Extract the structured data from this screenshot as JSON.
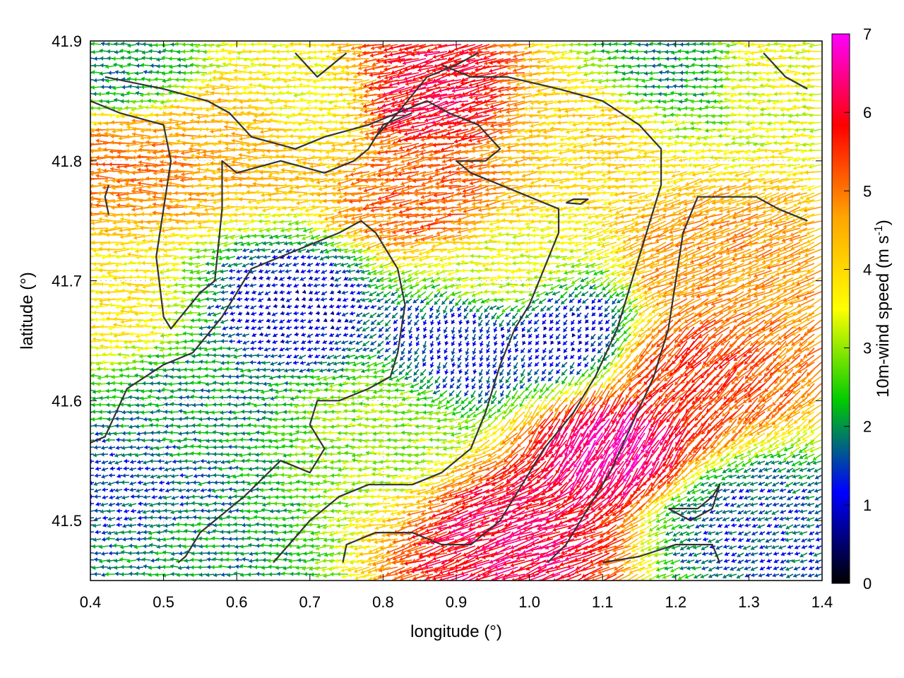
{
  "chart_data": {
    "type": "vector-field",
    "xlabel": "longitude (°)",
    "ylabel": "latitude (°)",
    "colorbar_label_main": "10m-wind speed (m s",
    "colorbar_label_sup": "-1",
    "colorbar_label_end": ")",
    "xlim": [
      0.4,
      1.4
    ],
    "ylim": [
      41.45,
      41.9
    ],
    "xticks": [
      "0.4",
      "0.5",
      "0.6",
      "0.7",
      "0.8",
      "0.9",
      "1.0",
      "1.1",
      "1.2",
      "1.3",
      "1.4"
    ],
    "xtick_values": [
      0.4,
      0.5,
      0.6,
      0.7,
      0.8,
      0.9,
      1.0,
      1.1,
      1.2,
      1.3,
      1.4
    ],
    "yticks": [
      "41.5",
      "41.6",
      "41.7",
      "41.8",
      "41.9"
    ],
    "ytick_values": [
      41.5,
      41.6,
      41.7,
      41.8,
      41.9
    ],
    "colorbar": {
      "range": [
        0,
        7
      ],
      "ticks": [
        "0",
        "1",
        "2",
        "3",
        "4",
        "5",
        "6",
        "7"
      ],
      "tick_values": [
        0,
        1,
        2,
        3,
        4,
        5,
        6,
        7
      ],
      "palette": [
        "#000000",
        "#0000ff",
        "#00cc00",
        "#ffff00",
        "#ffa500",
        "#ff0000",
        "#ff00ff"
      ]
    },
    "speed_regions": [
      {
        "lon": 0.47,
        "lat": 41.8,
        "speed": 5.0,
        "dir_deg": 180
      },
      {
        "lon": 0.62,
        "lat": 41.82,
        "speed": 4.5,
        "dir_deg": 180
      },
      {
        "lon": 0.88,
        "lat": 41.86,
        "speed": 6.0,
        "dir_deg": 195
      },
      {
        "lon": 0.87,
        "lat": 41.77,
        "speed": 5.2,
        "dir_deg": 190
      },
      {
        "lon": 1.1,
        "lat": 41.83,
        "speed": 4.0,
        "dir_deg": 185
      },
      {
        "lon": 1.25,
        "lat": 41.72,
        "speed": 4.8,
        "dir_deg": 200
      },
      {
        "lon": 1.22,
        "lat": 41.63,
        "speed": 5.5,
        "dir_deg": 225
      },
      {
        "lon": 1.12,
        "lat": 41.57,
        "speed": 6.5,
        "dir_deg": 240
      },
      {
        "lon": 1.0,
        "lat": 41.49,
        "speed": 6.2,
        "dir_deg": 200
      },
      {
        "lon": 0.7,
        "lat": 41.85,
        "speed": 3.5,
        "dir_deg": 180
      },
      {
        "lon": 0.8,
        "lat": 41.58,
        "speed": 3.0,
        "dir_deg": 180
      },
      {
        "lon": 0.68,
        "lat": 41.68,
        "speed": 1.0,
        "dir_deg": 200
      },
      {
        "lon": 0.92,
        "lat": 41.65,
        "speed": 1.2,
        "dir_deg": 250
      },
      {
        "lon": 0.45,
        "lat": 41.52,
        "speed": 1.5,
        "dir_deg": 190
      },
      {
        "lon": 0.55,
        "lat": 41.6,
        "speed": 2.0,
        "dir_deg": 180
      },
      {
        "lon": 1.05,
        "lat": 41.66,
        "speed": 1.0,
        "dir_deg": 230
      },
      {
        "lon": 1.3,
        "lat": 41.5,
        "speed": 1.5,
        "dir_deg": 200
      },
      {
        "lon": 1.35,
        "lat": 41.88,
        "speed": 3.5,
        "dir_deg": 180
      },
      {
        "lon": 1.2,
        "lat": 41.88,
        "speed": 2.0,
        "dir_deg": 180
      },
      {
        "lon": 0.45,
        "lat": 41.88,
        "speed": 2.0,
        "dir_deg": 180
      },
      {
        "lon": 0.43,
        "lat": 41.68,
        "speed": 3.8,
        "dir_deg": 180
      },
      {
        "lon": 0.98,
        "lat": 41.71,
        "speed": 3.5,
        "dir_deg": 180
      },
      {
        "lon": 0.52,
        "lat": 41.47,
        "speed": 2.0,
        "dir_deg": 180
      }
    ],
    "contours": [
      [
        [
          0.42,
          41.87
        ],
        [
          0.5,
          41.86
        ],
        [
          0.56,
          41.85
        ],
        [
          0.59,
          41.84
        ],
        [
          0.62,
          41.82
        ],
        [
          0.68,
          41.81
        ],
        [
          0.72,
          41.82
        ],
        [
          0.78,
          41.83
        ],
        [
          0.82,
          41.84
        ],
        [
          0.86,
          41.87
        ],
        [
          0.9,
          41.88
        ],
        [
          0.93,
          41.89
        ]
      ],
      [
        [
          0.4,
          41.85
        ],
        [
          0.44,
          41.84
        ],
        [
          0.5,
          41.83
        ],
        [
          0.51,
          41.8
        ],
        [
          0.5,
          41.76
        ],
        [
          0.49,
          41.72
        ],
        [
          0.5,
          41.67
        ],
        [
          0.51,
          41.66
        ],
        [
          0.55,
          41.69
        ],
        [
          0.57,
          41.7
        ],
        [
          0.58,
          41.76
        ],
        [
          0.58,
          41.8
        ],
        [
          0.6,
          41.79
        ],
        [
          0.66,
          41.8
        ],
        [
          0.72,
          41.79
        ],
        [
          0.76,
          41.8
        ],
        [
          0.78,
          41.81
        ],
        [
          0.8,
          41.83
        ],
        [
          0.84,
          41.84
        ]
      ],
      [
        [
          0.4,
          41.565
        ],
        [
          0.42,
          41.57
        ],
        [
          0.45,
          41.61
        ],
        [
          0.5,
          41.63
        ],
        [
          0.54,
          41.64
        ],
        [
          0.58,
          41.67
        ],
        [
          0.62,
          41.71
        ],
        [
          0.66,
          41.72
        ],
        [
          0.7,
          41.73
        ],
        [
          0.74,
          41.74
        ],
        [
          0.77,
          41.75
        ],
        [
          0.79,
          41.74
        ],
        [
          0.8,
          41.73
        ],
        [
          0.82,
          41.71
        ],
        [
          0.83,
          41.68
        ],
        [
          0.82,
          41.64
        ],
        [
          0.81,
          41.62
        ],
        [
          0.78,
          41.61
        ],
        [
          0.74,
          41.6
        ],
        [
          0.71,
          41.6
        ],
        [
          0.7,
          41.58
        ],
        [
          0.72,
          41.56
        ],
        [
          0.7,
          41.54
        ],
        [
          0.66,
          41.55
        ],
        [
          0.61,
          41.52
        ],
        [
          0.59,
          41.51
        ],
        [
          0.55,
          41.49
        ],
        [
          0.53,
          41.47
        ],
        [
          0.52,
          41.465
        ]
      ],
      [
        [
          0.65,
          41.465
        ],
        [
          0.7,
          41.5
        ],
        [
          0.74,
          41.52
        ],
        [
          0.78,
          41.53
        ],
        [
          0.84,
          41.53
        ],
        [
          0.88,
          41.54
        ],
        [
          0.92,
          41.56
        ],
        [
          0.94,
          41.59
        ],
        [
          0.96,
          41.63
        ],
        [
          0.98,
          41.66
        ],
        [
          1.0,
          41.68
        ],
        [
          1.02,
          41.71
        ],
        [
          1.04,
          41.74
        ],
        [
          1.04,
          41.76
        ],
        [
          1.0,
          41.77
        ],
        [
          0.96,
          41.78
        ],
        [
          0.92,
          41.79
        ],
        [
          0.9,
          41.8
        ],
        [
          0.94,
          41.8
        ],
        [
          0.96,
          41.81
        ],
        [
          0.93,
          41.83
        ],
        [
          0.89,
          41.84
        ],
        [
          0.86,
          41.85
        ],
        [
          0.82,
          41.84
        ],
        [
          0.79,
          41.82
        ]
      ],
      [
        [
          0.745,
          41.465
        ],
        [
          0.75,
          41.48
        ],
        [
          0.79,
          41.49
        ],
        [
          0.84,
          41.49
        ],
        [
          0.88,
          41.48
        ],
        [
          0.92,
          41.48
        ],
        [
          0.96,
          41.5
        ],
        [
          0.99,
          41.53
        ],
        [
          1.02,
          41.56
        ],
        [
          1.06,
          41.59
        ],
        [
          1.09,
          41.62
        ],
        [
          1.12,
          41.66
        ],
        [
          1.14,
          41.7
        ],
        [
          1.16,
          41.74
        ],
        [
          1.18,
          41.78
        ],
        [
          1.18,
          41.81
        ],
        [
          1.15,
          41.83
        ],
        [
          1.1,
          41.85
        ],
        [
          1.04,
          41.86
        ],
        [
          0.97,
          41.87
        ],
        [
          0.92,
          41.87
        ],
        [
          0.88,
          41.88
        ]
      ],
      [
        [
          1.025,
          41.465
        ],
        [
          1.05,
          41.48
        ],
        [
          1.08,
          41.51
        ],
        [
          1.11,
          41.54
        ],
        [
          1.14,
          41.58
        ],
        [
          1.17,
          41.62
        ],
        [
          1.19,
          41.66
        ],
        [
          1.2,
          41.7
        ],
        [
          1.21,
          41.74
        ],
        [
          1.23,
          41.77
        ],
        [
          1.27,
          41.77
        ],
        [
          1.31,
          41.77
        ],
        [
          1.34,
          41.76
        ],
        [
          1.38,
          41.75
        ]
      ],
      [
        [
          1.1,
          41.465
        ],
        [
          1.15,
          41.47
        ],
        [
          1.2,
          41.48
        ],
        [
          1.25,
          41.48
        ],
        [
          1.26,
          41.465
        ]
      ],
      [
        [
          1.32,
          41.89
        ],
        [
          1.35,
          41.87
        ],
        [
          1.38,
          41.86
        ]
      ],
      [
        [
          1.05,
          41.765
        ],
        [
          1.07,
          41.764
        ],
        [
          1.08,
          41.768
        ],
        [
          1.06,
          41.768
        ],
        [
          1.05,
          41.765
        ]
      ],
      [
        [
          1.19,
          41.51
        ],
        [
          1.23,
          41.51
        ],
        [
          1.25,
          41.52
        ],
        [
          1.26,
          41.53
        ],
        [
          1.25,
          41.51
        ],
        [
          1.22,
          41.5
        ],
        [
          1.19,
          41.51
        ]
      ],
      [
        [
          0.425,
          41.755
        ],
        [
          0.42,
          41.77
        ],
        [
          0.425,
          41.78
        ]
      ],
      [
        [
          0.68,
          41.89
        ],
        [
          0.71,
          41.87
        ],
        [
          0.73,
          41.88
        ],
        [
          0.75,
          41.89
        ]
      ]
    ]
  }
}
